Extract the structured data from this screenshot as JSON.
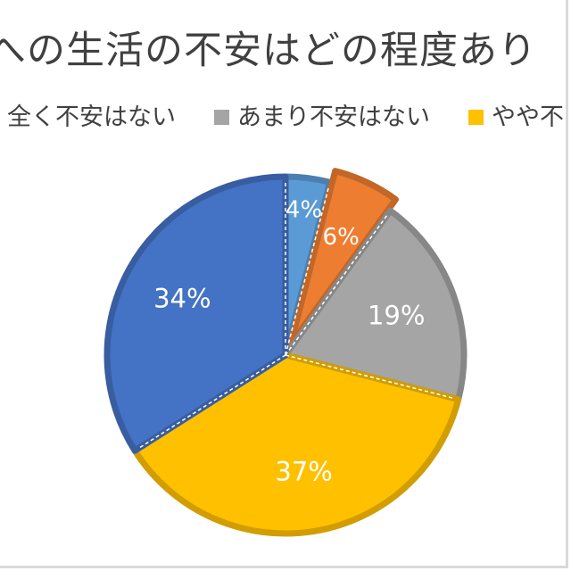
{
  "title": "への生活の不安はどの程度あり",
  "legend": [
    {
      "label": "全く不安はない",
      "color": "#4472c4"
    },
    {
      "label": "あまり不安はない",
      "color": "#a5a5a5"
    },
    {
      "label": "やや不",
      "color": "#ffc000"
    }
  ],
  "chart_data": {
    "type": "pie",
    "title": "への生活の不安はどの程度あり",
    "slices": [
      {
        "label": "4%",
        "value": 4,
        "color": "#5b9bd5"
      },
      {
        "label": "6%",
        "value": 6,
        "color": "#ed7d31"
      },
      {
        "label": "19%",
        "value": 19,
        "color": "#a5a5a5"
      },
      {
        "label": "37%",
        "value": 37,
        "color": "#ffc000"
      },
      {
        "label": "34%",
        "value": 34,
        "color": "#4472c4"
      }
    ]
  }
}
